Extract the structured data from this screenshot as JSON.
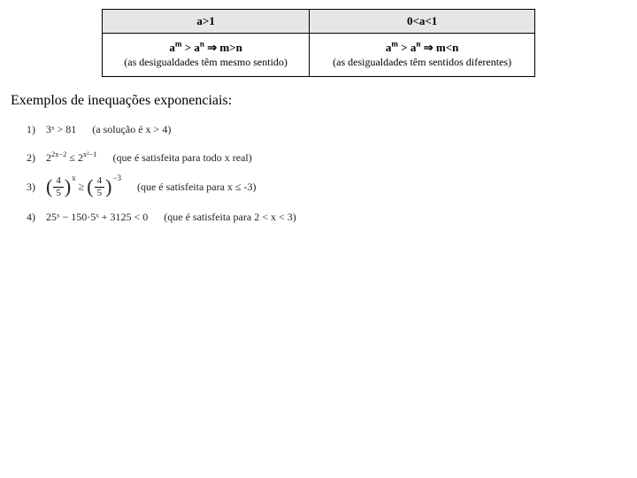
{
  "table": {
    "header_left": "a>1",
    "header_right": "0<a<1",
    "left_main_before": "a",
    "left_main_sup1": "m",
    "left_main_mid": " > a",
    "left_main_sup2": "n",
    "left_main_after": " ⇒ m>n",
    "left_sub": "(as desigualdades têm mesmo sentido)",
    "right_main_before": "a",
    "right_main_sup1": "m",
    "right_main_mid": " > a",
    "right_main_sup2": "n",
    "right_main_after": " ⇒ m<n",
    "right_sub": "(as desigualdades têm sentidos diferentes)"
  },
  "section_title": "Exemplos de inequações exponenciais:",
  "ex1": {
    "num": "1)",
    "expr": "3ˣ > 81",
    "note": "(a solução é x > 4)"
  },
  "ex2": {
    "num": "2)",
    "expr_a": "2",
    "expr_sup_a": "2x−2",
    "expr_mid": " ≤ 2",
    "expr_sup_b": "x²−1",
    "note": "(que é satisfeita para todo x real)"
  },
  "ex3": {
    "num": "3)",
    "frac_n": "4",
    "frac_d": "5",
    "pow_a": "x",
    "mid": " ≥ ",
    "pow_b": "−3",
    "note": "(que é satisfeita para x ≤ -3)"
  },
  "ex4": {
    "num": "4)",
    "expr": "25ˣ − 150·5ˣ + 3125 < 0",
    "note": "(que é satisfeita para 2 < x < 3)"
  }
}
